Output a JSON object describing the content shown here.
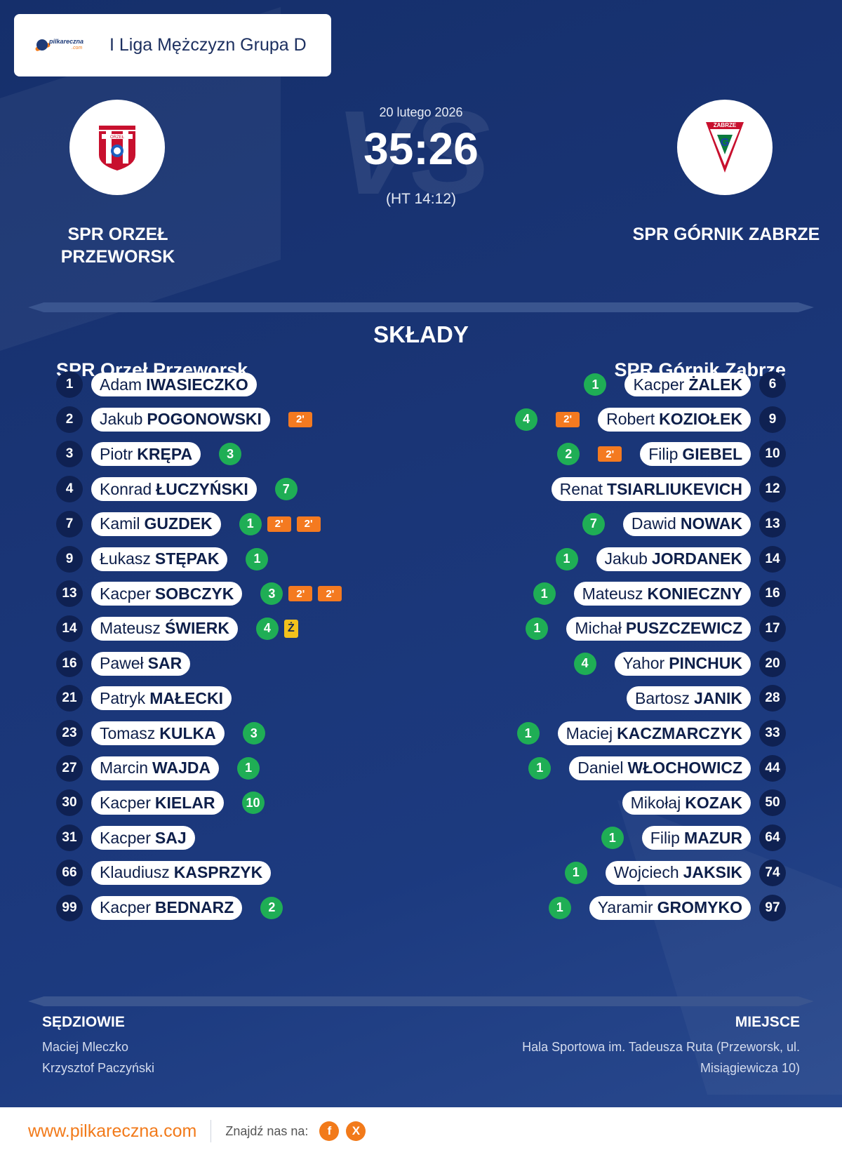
{
  "header": {
    "league": "I Liga Mężczyzn Grupa D",
    "logo_text": "pilkareczna",
    "logo_suffix": ".com"
  },
  "match": {
    "date": "20 lutego 2026",
    "score": "35:26",
    "halftime": "(HT 14:12)",
    "vs_text": "VS"
  },
  "home_team": {
    "name_line1": "SPR ORZEŁ",
    "name_line2": "PRZEWORSK",
    "squad_title": "SPR Orzeł Przeworsk",
    "crest_text": "ORZEŁ"
  },
  "away_team": {
    "name": "SPR GÓRNIK ZABRZE",
    "squad_title": "SPR Górnik Zabrze",
    "crest_text": "ZABRZE"
  },
  "section_title": "SKŁADY",
  "home_players": [
    {
      "num": "1",
      "first": "Adam",
      "last": "IWASIECZKO",
      "goals": "",
      "cards": []
    },
    {
      "num": "2",
      "first": "Jakub",
      "last": "POGONOWSKI",
      "goals": "",
      "cards": [
        "2'"
      ]
    },
    {
      "num": "3",
      "first": "Piotr",
      "last": "KRĘPA",
      "goals": "3",
      "cards": []
    },
    {
      "num": "4",
      "first": "Konrad",
      "last": "ŁUCZYŃSKI",
      "goals": "7",
      "cards": []
    },
    {
      "num": "7",
      "first": "Kamil",
      "last": "GUZDEK",
      "goals": "1",
      "cards": [
        "2'",
        "2'"
      ]
    },
    {
      "num": "9",
      "first": "Łukasz",
      "last": "STĘPAK",
      "goals": "1",
      "cards": []
    },
    {
      "num": "13",
      "first": "Kacper",
      "last": "SOBCZYK",
      "goals": "3",
      "cards": [
        "2'",
        "2'"
      ]
    },
    {
      "num": "14",
      "first": "Mateusz",
      "last": "ŚWIERK",
      "goals": "4",
      "cards": [
        "Ż"
      ]
    },
    {
      "num": "16",
      "first": "Paweł",
      "last": "SAR",
      "goals": "",
      "cards": []
    },
    {
      "num": "21",
      "first": "Patryk",
      "last": "MAŁECKI",
      "goals": "",
      "cards": []
    },
    {
      "num": "23",
      "first": "Tomasz",
      "last": "KULKA",
      "goals": "3",
      "cards": []
    },
    {
      "num": "27",
      "first": "Marcin",
      "last": "WAJDA",
      "goals": "1",
      "cards": []
    },
    {
      "num": "30",
      "first": "Kacper",
      "last": "KIELAR",
      "goals": "10",
      "cards": []
    },
    {
      "num": "31",
      "first": "Kacper",
      "last": "SAJ",
      "goals": "",
      "cards": []
    },
    {
      "num": "66",
      "first": "Klaudiusz",
      "last": "KASPRZYK",
      "goals": "",
      "cards": []
    },
    {
      "num": "99",
      "first": "Kacper",
      "last": "BEDNARZ",
      "goals": "2",
      "cards": []
    }
  ],
  "away_players": [
    {
      "num": "6",
      "first": "Kacper",
      "last": "ŻALEK",
      "goals": "1",
      "cards": []
    },
    {
      "num": "9",
      "first": "Robert",
      "last": "KOZIOŁEK",
      "goals": "4",
      "cards": [
        "2'"
      ]
    },
    {
      "num": "10",
      "first": "Filip",
      "last": "GIEBEL",
      "goals": "2",
      "cards": [
        "2'"
      ]
    },
    {
      "num": "12",
      "first": "Renat",
      "last": "TSIARLIUKEVICH",
      "goals": "",
      "cards": []
    },
    {
      "num": "13",
      "first": "Dawid",
      "last": "NOWAK",
      "goals": "7",
      "cards": []
    },
    {
      "num": "14",
      "first": "Jakub",
      "last": "JORDANEK",
      "goals": "1",
      "cards": []
    },
    {
      "num": "16",
      "first": "Mateusz",
      "last": "KONIECZNY",
      "goals": "1",
      "cards": []
    },
    {
      "num": "17",
      "first": "Michał",
      "last": "PUSZCZEWICZ",
      "goals": "1",
      "cards": []
    },
    {
      "num": "20",
      "first": "Yahor",
      "last": "PINCHUK",
      "goals": "4",
      "cards": []
    },
    {
      "num": "28",
      "first": "Bartosz",
      "last": "JANIK",
      "goals": "",
      "cards": []
    },
    {
      "num": "33",
      "first": "Maciej",
      "last": "KACZMARCZYK",
      "goals": "1",
      "cards": []
    },
    {
      "num": "44",
      "first": "Daniel",
      "last": "WŁOCHOWICZ",
      "goals": "1",
      "cards": []
    },
    {
      "num": "50",
      "first": "Mikołaj",
      "last": "KOZAK",
      "goals": "",
      "cards": []
    },
    {
      "num": "64",
      "first": "Filip",
      "last": "MAZUR",
      "goals": "1",
      "cards": []
    },
    {
      "num": "74",
      "first": "Wojciech",
      "last": "JAKSIK",
      "goals": "1",
      "cards": []
    },
    {
      "num": "97",
      "first": "Yaramir",
      "last": "GROMYKO",
      "goals": "1",
      "cards": []
    }
  ],
  "referees": {
    "title": "SĘDZIOWIE",
    "names": [
      "Maciej Mleczko",
      "Krzysztof Paczyński"
    ]
  },
  "venue": {
    "title": "MIEJSCE",
    "line1": "Hala Sportowa im. Tadeusza Ruta (Przeworsk, ul.",
    "line2": "Misiągiewicza 10)"
  },
  "footer": {
    "site": "www.pilkareczna.com",
    "find_us": "Znajdź nas na:",
    "social": [
      "f",
      "X"
    ]
  },
  "colors": {
    "background": "#1a3576",
    "goal_badge": "#1fae55",
    "two_min_card": "#f47a20",
    "yellow_card": "#f4c21c",
    "brand_orange": "#f27a1a"
  }
}
